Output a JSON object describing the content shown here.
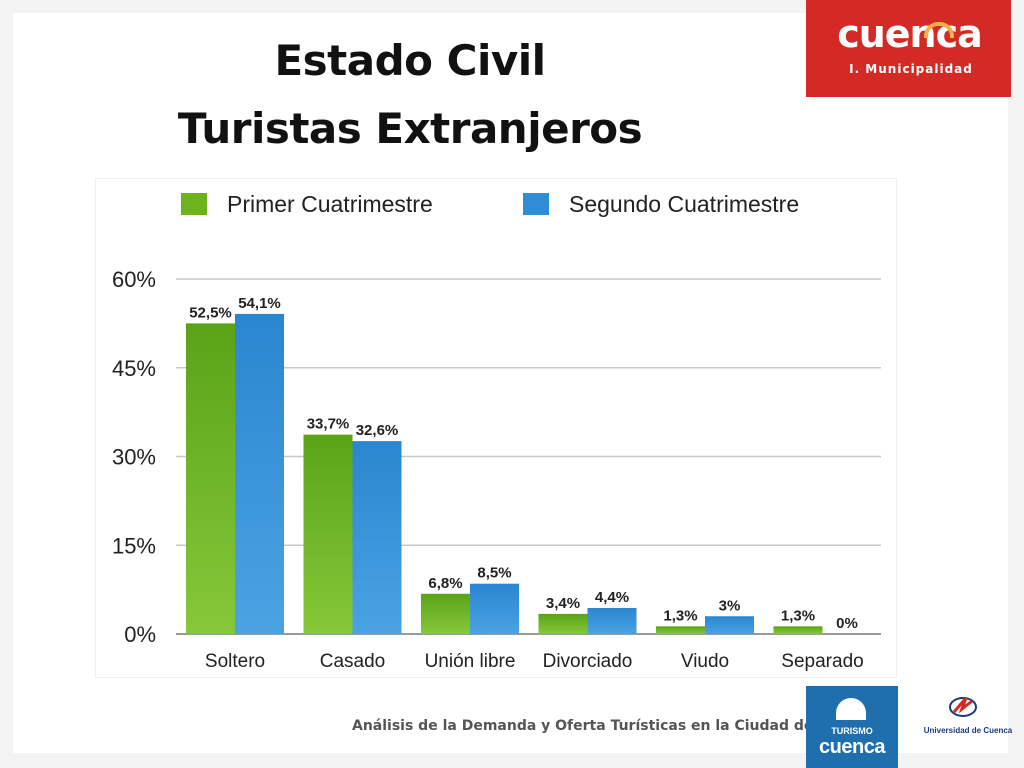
{
  "header": {
    "title_line1": "Estado Civil",
    "title_line2": "Turistas Extranjeros"
  },
  "logo_top": {
    "name": "cuenca",
    "subtitle": "I. Municipalidad"
  },
  "footer": {
    "text": "Análisis de la Demanda y Oferta Turísticas en la Ciudad de Cuenca"
  },
  "logo_bottom": {
    "small": "TURISMO",
    "big": "cuenca"
  },
  "university": {
    "label": "Universidad de Cuenca"
  },
  "colors": {
    "series1": "#6cb31e",
    "series2": "#2f8ed6",
    "accent_red": "#d42a26",
    "footer_blue": "#1f6fae"
  },
  "chart_data": {
    "type": "bar",
    "categories": [
      "Soltero",
      "Casado",
      "Unión libre",
      "Divorciado",
      "Viudo",
      "Separado"
    ],
    "series": [
      {
        "name": "Primer Cuatrimestre",
        "values": [
          52.5,
          33.7,
          6.8,
          3.4,
          1.3,
          1.3
        ],
        "labels": [
          "52,5%",
          "33,7%",
          "6,8%",
          "3,4%",
          "1,3%",
          "1,3%"
        ]
      },
      {
        "name": "Segundo Cuatrimestre",
        "values": [
          54.1,
          32.6,
          8.5,
          4.4,
          3,
          0
        ],
        "labels": [
          "54,1%",
          "32,6%",
          "8,5%",
          "4,4%",
          "3%",
          "0%"
        ]
      }
    ],
    "yticks": [
      "0%",
      "15%",
      "30%",
      "45%",
      "60%"
    ],
    "ytick_values": [
      0,
      15,
      30,
      45,
      60
    ],
    "ylim": [
      0,
      60
    ],
    "grid": true,
    "legend_position": "top"
  }
}
